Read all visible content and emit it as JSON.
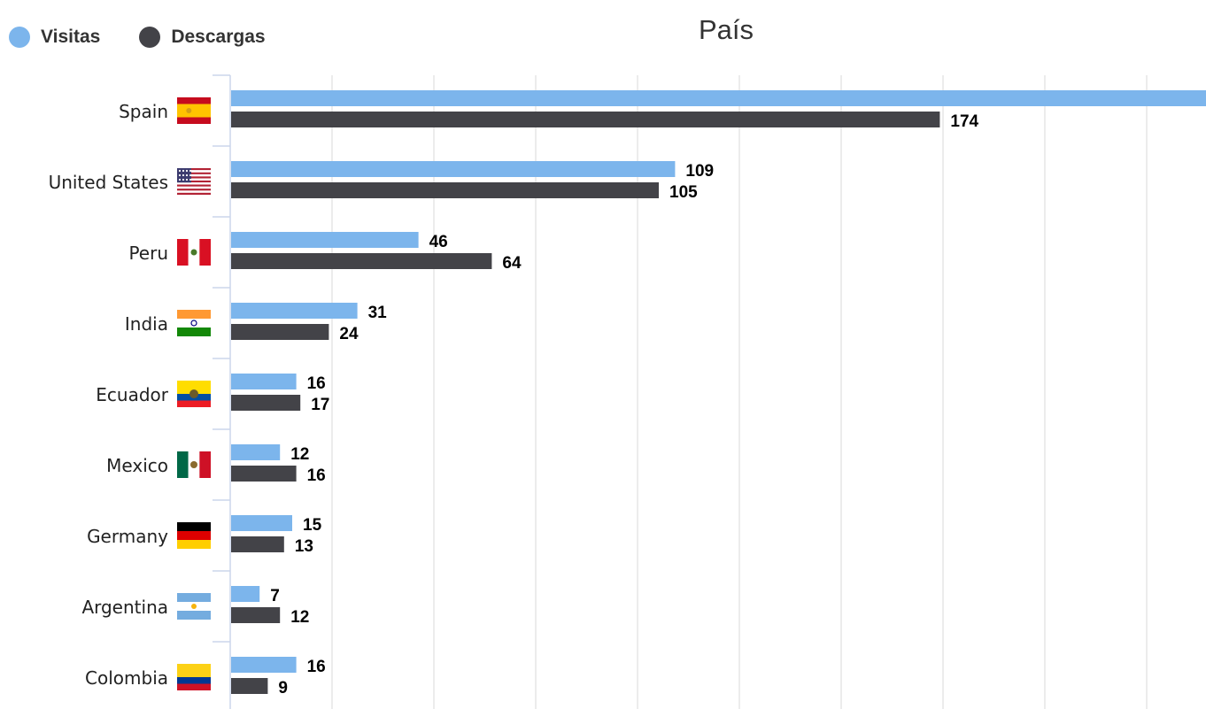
{
  "legend": {
    "items": [
      {
        "label": "Visitas",
        "color": "#7cb5ec"
      },
      {
        "label": "Descargas",
        "color": "#434348"
      }
    ]
  },
  "chart_data": {
    "type": "bar",
    "orientation": "horizontal",
    "title": "País",
    "categories": [
      "Spain",
      "United States",
      "Peru",
      "India",
      "Ecuador",
      "Mexico",
      "Germany",
      "Argentina",
      "Colombia"
    ],
    "category_icons": [
      "spain-flag",
      "united-states-flag",
      "peru-flag",
      "india-flag",
      "ecuador-flag",
      "mexico-flag",
      "germany-flag",
      "argentina-flag",
      "colombia-flag"
    ],
    "series": [
      {
        "name": "Visitas",
        "color": "#7cb5ec",
        "values": [
          240,
          109,
          46,
          31,
          16,
          12,
          15,
          7,
          16
        ],
        "data_labels": [
          "",
          "109",
          "46",
          "31",
          "16",
          "12",
          "15",
          "7",
          "16"
        ]
      },
      {
        "name": "Descargas",
        "color": "#434348",
        "values": [
          174,
          105,
          64,
          24,
          17,
          16,
          13,
          12,
          9
        ],
        "data_labels": [
          "174",
          "105",
          "64",
          "24",
          "17",
          "16",
          "13",
          "12",
          "9"
        ]
      }
    ],
    "xlim": [
      0,
      250
    ],
    "grid": true,
    "legend_position": "top-left"
  }
}
